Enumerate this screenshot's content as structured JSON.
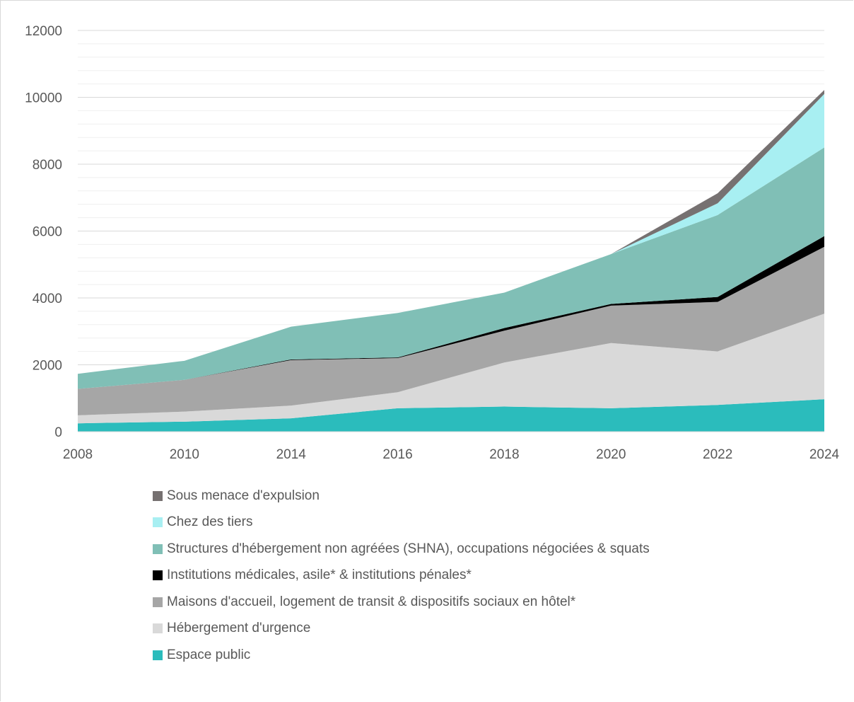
{
  "chart_data": {
    "type": "area",
    "stacked": true,
    "categories": [
      "2008",
      "2010",
      "2014",
      "2016",
      "2018",
      "2020",
      "2022",
      "2024"
    ],
    "ylim": [
      0,
      12000
    ],
    "yticks": [
      "0",
      "2000",
      "4000",
      "6000",
      "8000",
      "10000",
      "12000"
    ],
    "grid": true,
    "legend_position": "bottom",
    "series": [
      {
        "name": "Espace public",
        "color": "#2bbcbc",
        "values": [
          250,
          300,
          400,
          700,
          750,
          700,
          800,
          970
        ]
      },
      {
        "name": "Hébergement d'urgence",
        "color": "#d9d9d9",
        "values": [
          240,
          300,
          380,
          480,
          1320,
          1950,
          1600,
          2560
        ]
      },
      {
        "name": "Maisons d'accueil,  logement de transit & dispositifs sociaux en hôtel*",
        "color": "#a6a6a6",
        "values": [
          790,
          950,
          1360,
          1020,
          950,
          1120,
          1480,
          2000
        ]
      },
      {
        "name": "Institutions médicales, asile* & institutions pénales*",
        "color": "#000000",
        "values": [
          0,
          0,
          20,
          20,
          80,
          50,
          150,
          320
        ]
      },
      {
        "name": "Structures d'hébergement non agréées (SHNA), occupations négociées & squats",
        "color": "#80bfb6",
        "values": [
          450,
          570,
          980,
          1330,
          1060,
          1490,
          2450,
          2650
        ]
      },
      {
        "name": "Chez des tiers",
        "color": "#a8eff2",
        "values": [
          0,
          0,
          0,
          0,
          0,
          0,
          350,
          1600
        ]
      },
      {
        "name": "Sous menace d'expulsion",
        "color": "#767171",
        "values": [
          0,
          0,
          0,
          0,
          0,
          0,
          300,
          120
        ]
      }
    ]
  }
}
